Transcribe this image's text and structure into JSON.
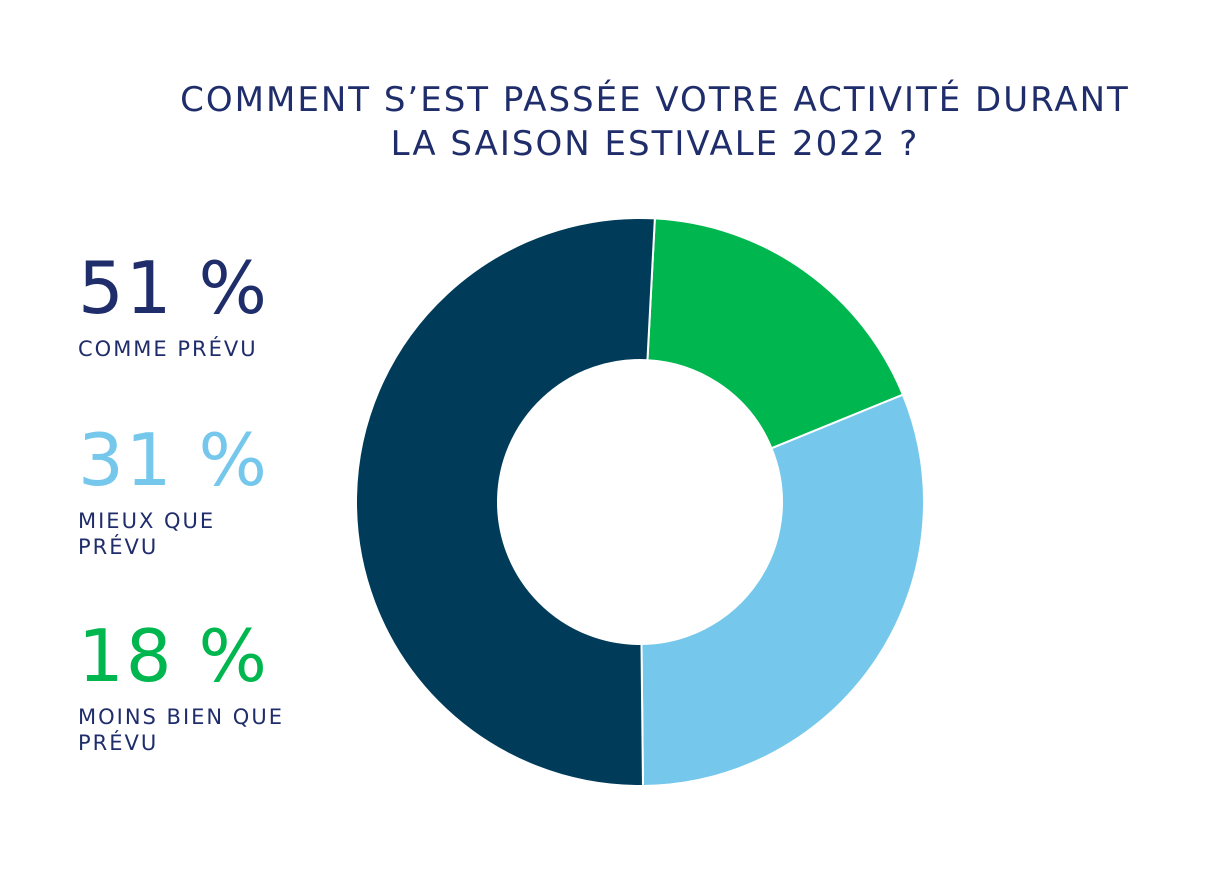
{
  "title": {
    "line1": "COMMENT S’EST PASSÉE VOTRE ACTIVITÉ DURANT",
    "line2": "LA SAISON ESTIVALE 2022 ?"
  },
  "chart_data": {
    "type": "pie",
    "variant": "donut",
    "title": "COMMENT S’EST PASSÉE VOTRE ACTIVITÉ DURANT LA SAISON ESTIVALE 2022 ?",
    "unit": "%",
    "slices": [
      {
        "label": "COMME PRÉVU",
        "value": 51,
        "value_text": "51 %",
        "color": "#003c5a"
      },
      {
        "label": "MIEUX QUE PRÉVU",
        "value": 31,
        "value_text": "31 %",
        "color": "#75c8eb"
      },
      {
        "label": "MOINS BIEN QUE PRÉVU",
        "value": 18,
        "value_text": "18 %",
        "color": "#00b74f"
      }
    ],
    "legend_position": "left"
  },
  "colors": {
    "title": "#1f2d6b",
    "label": "#1f2d6b",
    "value_51": "#1f2d6b",
    "value_31": "#75c8eb",
    "value_18": "#00b74f"
  }
}
